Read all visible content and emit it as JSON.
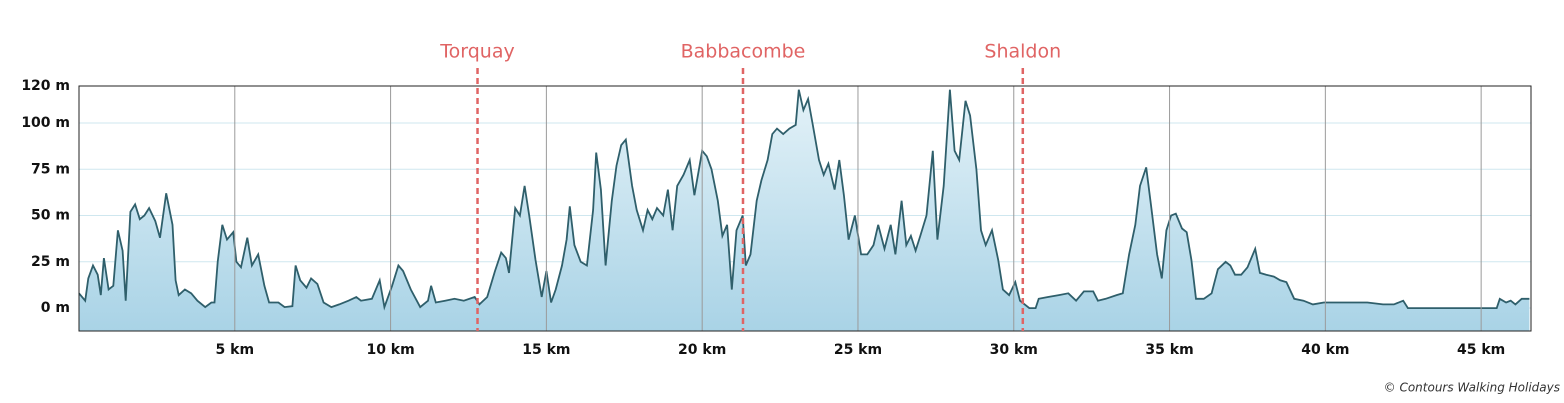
{
  "chart_data": {
    "type": "area",
    "x": [
      0,
      0.2,
      0.3,
      0.45,
      0.6,
      0.7,
      0.8,
      0.95,
      1.1,
      1.25,
      1.4,
      1.5,
      1.65,
      1.8,
      1.95,
      2.1,
      2.25,
      2.45,
      2.6,
      2.8,
      3.0,
      3.1,
      3.2,
      3.4,
      3.6,
      3.8,
      4.05,
      4.25,
      4.35,
      4.45,
      4.6,
      4.75,
      4.95,
      5.05,
      5.2,
      5.4,
      5.55,
      5.75,
      5.95,
      6.1,
      6.4,
      6.6,
      6.85,
      6.95,
      7.1,
      7.3,
      7.45,
      7.65,
      7.85,
      8.1,
      8.35,
      8.65,
      8.9,
      9.05,
      9.4,
      9.65,
      9.8,
      10.05,
      10.25,
      10.4,
      10.65,
      10.95,
      11.2,
      11.3,
      11.45,
      11.75,
      12.05,
      12.35,
      12.7,
      12.85,
      13.1,
      13.35,
      13.55,
      13.7,
      13.8,
      14.0,
      14.15,
      14.3,
      14.45,
      14.65,
      14.85,
      15.0,
      15.15,
      15.3,
      15.5,
      15.65,
      15.75,
      15.9,
      16.1,
      16.3,
      16.5,
      16.6,
      16.75,
      16.9,
      17.1,
      17.25,
      17.4,
      17.55,
      17.75,
      17.9,
      18.1,
      18.25,
      18.4,
      18.55,
      18.75,
      18.9,
      19.05,
      19.2,
      19.4,
      19.6,
      19.75,
      20.0,
      20.15,
      20.3,
      20.5,
      20.65,
      20.8,
      20.95,
      21.1,
      21.3,
      21.4,
      21.55,
      21.75,
      21.9,
      22.1,
      22.25,
      22.4,
      22.6,
      22.8,
      23.0,
      23.1,
      23.25,
      23.4,
      23.55,
      23.75,
      23.9,
      24.05,
      24.25,
      24.4,
      24.55,
      24.7,
      24.9,
      25.1,
      25.3,
      25.5,
      25.65,
      25.85,
      26.05,
      26.2,
      26.4,
      26.55,
      26.7,
      26.85,
      27.0,
      27.2,
      27.4,
      27.55,
      27.75,
      27.95,
      28.1,
      28.25,
      28.45,
      28.6,
      28.8,
      28.95,
      29.1,
      29.3,
      29.5,
      29.65,
      29.85,
      30.05,
      30.2,
      30.5,
      30.7,
      30.8,
      31.1,
      31.45,
      31.75,
      32.0,
      32.25,
      32.55,
      32.7,
      32.95,
      33.3,
      33.5,
      33.7,
      33.9,
      34.05,
      34.25,
      34.4,
      34.6,
      34.75,
      34.9,
      35.05,
      35.2,
      35.4,
      35.55,
      35.7,
      35.85,
      36.1,
      36.35,
      36.55,
      36.8,
      36.95,
      37.1,
      37.3,
      37.5,
      37.75,
      37.9,
      38.1,
      38.35,
      38.55,
      38.75,
      39.0,
      39.3,
      39.6,
      39.95,
      40.4,
      40.9,
      41.35,
      41.85,
      42.2,
      42.5,
      42.65,
      43.6,
      44.55,
      45.5,
      45.6,
      45.8,
      45.95,
      46.1,
      46.3,
      46.55
    ],
    "values": [
      8,
      4,
      16,
      23,
      18,
      7,
      27,
      10,
      12,
      42,
      31,
      4,
      52,
      56,
      48,
      50,
      54,
      47,
      38,
      62,
      45,
      15,
      7,
      10,
      8,
      4,
      0.5,
      3,
      3,
      25,
      45,
      37,
      41,
      25,
      22,
      38,
      23,
      29,
      12,
      3,
      3,
      0.5,
      1,
      23,
      15,
      11,
      16,
      13,
      3,
      0.5,
      2,
      4,
      6,
      4,
      5,
      15,
      0.5,
      12,
      23,
      20,
      10,
      0.5,
      4,
      12,
      3,
      4,
      5,
      4,
      6,
      2,
      6,
      20,
      30,
      27,
      19,
      54,
      50,
      66,
      50,
      26,
      6,
      20,
      3,
      10,
      23,
      37,
      55,
      34,
      25,
      23,
      53,
      84,
      64,
      23,
      58,
      77,
      88,
      91,
      66,
      53,
      42,
      53,
      48,
      54,
      50,
      64,
      42,
      66,
      72,
      80,
      61,
      85,
      82,
      75,
      58,
      39,
      45,
      10,
      42,
      50,
      23,
      29,
      58,
      69,
      80,
      94,
      97,
      94,
      97,
      99,
      118,
      107,
      113,
      99,
      80,
      72,
      78,
      64,
      80,
      61,
      37,
      50,
      29,
      29,
      34,
      45,
      32,
      45,
      29,
      58,
      34,
      39,
      31,
      39,
      50,
      85,
      37,
      66,
      118,
      85,
      80,
      112,
      104,
      75,
      42,
      34,
      42,
      26,
      10,
      7,
      14,
      4,
      0,
      0,
      5,
      6,
      7,
      8,
      4,
      9,
      9,
      4,
      5,
      7,
      8,
      29,
      45,
      66,
      76,
      56,
      29,
      16,
      42,
      50,
      51,
      43,
      41,
      26,
      5,
      5,
      8,
      21,
      25,
      23,
      18,
      18,
      22,
      32,
      19,
      18,
      17,
      15,
      14,
      5,
      4,
      2,
      3,
      3,
      3,
      3,
      2,
      2,
      4,
      0,
      0,
      0,
      0,
      5,
      3,
      4,
      2,
      5,
      5
    ],
    "color": "#2f5f6b",
    "fill": "#bfe1ef",
    "xlim": [
      0,
      46.6
    ],
    "ylim": [
      -12.4,
      120
    ],
    "xticks": [
      {
        "value": 5,
        "label": "5 km"
      },
      {
        "value": 10,
        "label": "10 km"
      },
      {
        "value": 15,
        "label": "15 km"
      },
      {
        "value": 20,
        "label": "20 km"
      },
      {
        "value": 25,
        "label": "25 km"
      },
      {
        "value": 30,
        "label": "30 km"
      },
      {
        "value": 35,
        "label": "35 km"
      },
      {
        "value": 40,
        "label": "40 km"
      },
      {
        "value": 45,
        "label": "45 km"
      }
    ],
    "yticks": [
      {
        "value": 0,
        "label": "0 m"
      },
      {
        "value": 25,
        "label": "25 m"
      },
      {
        "value": 50,
        "label": "50 m"
      },
      {
        "value": 75,
        "label": "75 m"
      },
      {
        "value": 100,
        "label": "100 m"
      },
      {
        "value": 120,
        "label": "120 m"
      }
    ],
    "grid": true,
    "markers": [
      {
        "label": "Torquay",
        "x": 12.79
      },
      {
        "label": "Babbacombe",
        "x": 21.31
      },
      {
        "label": "Shaldon",
        "x": 30.29
      }
    ],
    "marker_color": "#e06464"
  },
  "credit": "© Contours Walking Holidays"
}
